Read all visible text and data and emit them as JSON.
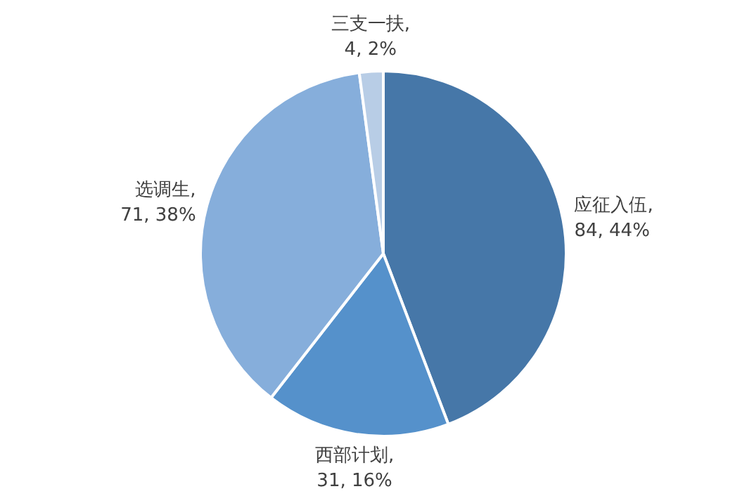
{
  "chart_data": {
    "type": "pie",
    "categories": [
      "应征入伍",
      "西部计划",
      "选调生",
      "三支一扶"
    ],
    "values": [
      84,
      31,
      71,
      4
    ],
    "colors": [
      "#4677a8",
      "#5591cb",
      "#86aedb",
      "#b8cde6"
    ],
    "value_labels": [
      ",\n84, 44%",
      ",\n31, 16%",
      ",\n71, 38%",
      ",\n4, 2%"
    ],
    "legend": false
  }
}
